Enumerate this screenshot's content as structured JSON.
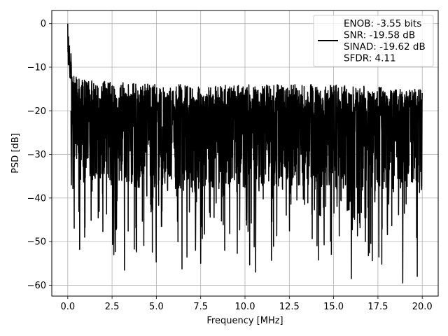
{
  "chart_data": {
    "type": "line",
    "title": "",
    "xlabel": "Frequency [MHz]",
    "ylabel": "PSD [dB]",
    "xlim": [
      -0.9,
      20.9
    ],
    "ylim": [
      -62.5,
      3.0
    ],
    "xticks": [
      0.0,
      2.5,
      5.0,
      7.5,
      10.0,
      12.5,
      15.0,
      17.5,
      20.0
    ],
    "xtick_labels": [
      "0.0",
      "2.5",
      "5.0",
      "7.5",
      "10.0",
      "12.5",
      "15.0",
      "17.5",
      "20.0"
    ],
    "yticks": [
      0,
      -10,
      -20,
      -30,
      -40,
      -50,
      -60
    ],
    "ytick_labels": [
      "0",
      "−10",
      "−20",
      "−30",
      "−40",
      "−50",
      "−60"
    ],
    "grid": true,
    "legend_position": "top-right",
    "series": [
      {
        "color": "#000000",
        "x_range": [
          0.0,
          20.0
        ],
        "peak": {
          "x": 0.0,
          "y": 0.0
        },
        "envelope_upper": [
          {
            "x": 0.0,
            "y": 0.0
          },
          {
            "x": 0.1,
            "y": -8.0
          },
          {
            "x": 0.3,
            "y": -12.0
          },
          {
            "x": 1.0,
            "y": -13.0
          },
          {
            "x": 5.0,
            "y": -14.0
          },
          {
            "x": 10.0,
            "y": -14.0
          },
          {
            "x": 15.0,
            "y": -14.0
          },
          {
            "x": 20.0,
            "y": -15.0
          }
        ],
        "envelope_lower": [
          {
            "x": 0.2,
            "y": -37.0
          },
          {
            "x": 2.6,
            "y": -53.0
          },
          {
            "x": 7.5,
            "y": -55.0
          },
          {
            "x": 10.6,
            "y": -57.0
          },
          {
            "x": 16.0,
            "y": -58.5
          },
          {
            "x": 18.9,
            "y": -59.5
          }
        ]
      }
    ],
    "legend": {
      "lines": [
        "ENOB: -3.55 bits",
        "SNR: -19.58 dB",
        "SINAD: -19.62 dB",
        "SFDR: 4.11"
      ]
    }
  }
}
